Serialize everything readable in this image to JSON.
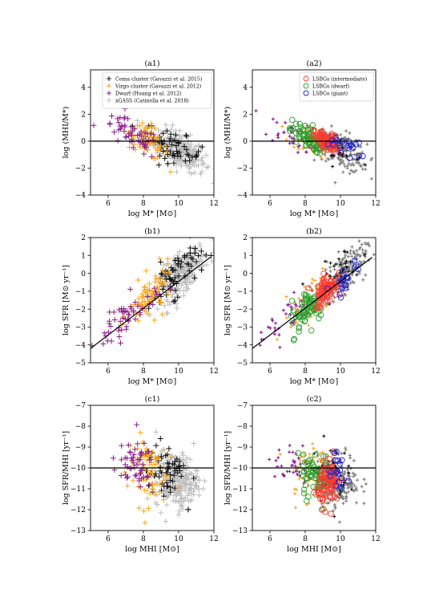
{
  "figure": {
    "panels": [
      "a1",
      "a2",
      "b1",
      "b2",
      "c1",
      "c2"
    ]
  },
  "colors": {
    "coma": "#111111",
    "virgo": "#f5a623",
    "dwarf": "#8b1f8b",
    "xgass": "#bdbdbd",
    "xgass_dense": "#7f7f7f",
    "lsbg_intermediate": "#ff3b30",
    "lsbg_dwarf": "#2ca02c",
    "lsbg_giant": "#1f1fd6",
    "refline": "#000000"
  },
  "chart_data": [
    {
      "id": "a1",
      "type": "scatter",
      "title": "(a1)",
      "xlabel": "log M* [M⊙]",
      "ylabel": "log (MHI/M*)",
      "xlim": [
        5,
        12
      ],
      "ylim": [
        -4,
        5.3
      ],
      "xticks": [
        6,
        8,
        10,
        12
      ],
      "yticks": [
        -4,
        -2,
        0,
        2,
        4
      ],
      "hline": 0,
      "legend": {
        "placement": "top-right",
        "entries": [
          {
            "label": "Coma cluster (Gavazzi et al. 2015)",
            "color": "#111111",
            "marker": "plus"
          },
          {
            "label": "Virgo cluster (Gavazzi et al. 2012)",
            "color": "#f5a623",
            "marker": "plus"
          },
          {
            "label": "Dwarf (Huang et al. 2012)",
            "color": "#8b1f8b",
            "marker": "plus"
          },
          {
            "label": "xGASS (Catinella et al. 2018)",
            "color": "#bdbdbd",
            "marker": "plus"
          }
        ]
      },
      "series": [
        {
          "color": "xgass",
          "center": [
            10.1,
            -0.7
          ],
          "spread": [
            0.7,
            0.65
          ],
          "slope": -0.6,
          "count": 230
        },
        {
          "color": "coma",
          "center": [
            9.7,
            -0.4
          ],
          "spread": [
            0.8,
            0.55
          ],
          "slope": -0.6,
          "count": 60
        },
        {
          "color": "virgo",
          "center": [
            8.3,
            0.0
          ],
          "spread": [
            0.55,
            0.6
          ],
          "slope": -0.6,
          "count": 75
        },
        {
          "color": "dwarf",
          "center": [
            7.3,
            0.4
          ],
          "spread": [
            0.8,
            0.55
          ],
          "slope": -0.6,
          "count": 55
        }
      ]
    },
    {
      "id": "a2",
      "type": "scatter",
      "title": "(a2)",
      "xlabel": "log M* [M⊙]",
      "ylabel": "log (MHI/M*)",
      "xlim": [
        5,
        12
      ],
      "ylim": [
        -4,
        5.3
      ],
      "xticks": [
        6,
        8,
        10,
        12
      ],
      "yticks": [
        -4,
        -2,
        0,
        2,
        4
      ],
      "hline": 0,
      "legend": {
        "placement": "top-right",
        "entries": [
          {
            "label": "LSBGs (intermediate)",
            "color": "#ff3b30",
            "marker": "circle"
          },
          {
            "label": "LSBGs (dwarf)",
            "color": "#2ca02c",
            "marker": "circle"
          },
          {
            "label": "LSBGs (giant)",
            "color": "#1f1fd6",
            "marker": "circle"
          }
        ]
      },
      "series": [
        {
          "color": "xgass_dense",
          "center": [
            10.1,
            -0.7
          ],
          "spread": [
            0.7,
            0.65
          ],
          "slope": -0.6,
          "count": 200,
          "marker": "x"
        },
        {
          "color": "coma",
          "center": [
            9.7,
            -0.4
          ],
          "spread": [
            0.8,
            0.55
          ],
          "slope": -0.6,
          "count": 40,
          "marker": "x"
        },
        {
          "color": "virgo",
          "center": [
            8.3,
            0.0
          ],
          "spread": [
            0.55,
            0.6
          ],
          "slope": -0.6,
          "count": 50,
          "marker": "x"
        },
        {
          "color": "dwarf",
          "center": [
            7.3,
            0.4
          ],
          "spread": [
            0.8,
            0.55
          ],
          "slope": -0.6,
          "count": 40,
          "marker": "x"
        },
        {
          "color": "lsbg_dwarf",
          "center": [
            8.1,
            0.3
          ],
          "spread": [
            0.5,
            0.45
          ],
          "slope": -0.5,
          "count": 75,
          "marker": "circle"
        },
        {
          "color": "lsbg_intermediate",
          "center": [
            9.2,
            -0.05
          ],
          "spread": [
            0.35,
            0.35
          ],
          "slope": -0.5,
          "count": 90,
          "marker": "circle"
        },
        {
          "color": "lsbg_giant",
          "center": [
            10.3,
            -0.35
          ],
          "spread": [
            0.45,
            0.3
          ],
          "slope": -0.5,
          "count": 20,
          "marker": "circle"
        }
      ]
    },
    {
      "id": "b1",
      "type": "scatter",
      "title": "(b1)",
      "xlabel": "log M* [M⊙]",
      "ylabel": "log SFR [M⊙ yr⁻¹]",
      "xlim": [
        5,
        12
      ],
      "ylim": [
        -5,
        2
      ],
      "xticks": [
        6,
        8,
        10,
        12
      ],
      "yticks": [
        -5,
        -4,
        -3,
        -2,
        -1,
        0,
        1,
        2
      ],
      "line": {
        "x": [
          5,
          11.8
        ],
        "y": [
          -4.2,
          0.9
        ]
      },
      "series": [
        {
          "color": "xgass",
          "center": [
            10.2,
            0.0
          ],
          "spread": [
            0.65,
            0.55
          ],
          "slope": 0.75,
          "count": 230
        },
        {
          "color": "coma",
          "center": [
            9.8,
            -0.1
          ],
          "spread": [
            0.75,
            0.6
          ],
          "slope": 0.75,
          "count": 70
        },
        {
          "color": "virgo",
          "center": [
            8.4,
            -1.3
          ],
          "spread": [
            0.6,
            0.6
          ],
          "slope": 0.75,
          "count": 80
        },
        {
          "color": "dwarf",
          "center": [
            7.0,
            -2.5
          ],
          "spread": [
            0.85,
            0.55
          ],
          "slope": 0.75,
          "count": 55
        }
      ]
    },
    {
      "id": "b2",
      "type": "scatter",
      "title": "(b2)",
      "xlabel": "log M* [M⊙]",
      "ylabel": "log SFR [M⊙ yr⁻¹]",
      "xlim": [
        5,
        12
      ],
      "ylim": [
        -5,
        2
      ],
      "xticks": [
        6,
        8,
        10,
        12
      ],
      "yticks": [
        -5,
        -4,
        -3,
        -2,
        -1,
        0,
        1,
        2
      ],
      "line": {
        "x": [
          5,
          11.8
        ],
        "y": [
          -4.2,
          0.9
        ]
      },
      "series": [
        {
          "color": "xgass_dense",
          "center": [
            10.2,
            0.0
          ],
          "spread": [
            0.65,
            0.55
          ],
          "slope": 0.75,
          "count": 200,
          "marker": "x"
        },
        {
          "color": "coma",
          "center": [
            9.8,
            -0.1
          ],
          "spread": [
            0.75,
            0.6
          ],
          "slope": 0.75,
          "count": 45,
          "marker": "x"
        },
        {
          "color": "virgo",
          "center": [
            8.4,
            -1.3
          ],
          "spread": [
            0.6,
            0.6
          ],
          "slope": 0.75,
          "count": 55,
          "marker": "x"
        },
        {
          "color": "dwarf",
          "center": [
            7.0,
            -2.5
          ],
          "spread": [
            0.85,
            0.55
          ],
          "slope": 0.75,
          "count": 40,
          "marker": "x"
        },
        {
          "color": "lsbg_dwarf",
          "center": [
            8.2,
            -1.9
          ],
          "spread": [
            0.5,
            0.55
          ],
          "slope": 0.75,
          "count": 75,
          "marker": "circle"
        },
        {
          "color": "lsbg_intermediate",
          "center": [
            9.2,
            -0.9
          ],
          "spread": [
            0.3,
            0.4
          ],
          "slope": 0.75,
          "count": 90,
          "marker": "circle"
        },
        {
          "color": "lsbg_giant",
          "center": [
            10.3,
            -0.2
          ],
          "spread": [
            0.45,
            0.35
          ],
          "slope": 0.75,
          "count": 20,
          "marker": "circle"
        }
      ]
    },
    {
      "id": "c1",
      "type": "scatter",
      "title": "(c1)",
      "xlabel": "log MHI [M⊙]",
      "ylabel": "log SFR/MHI [yr⁻¹]",
      "xlim": [
        5,
        12
      ],
      "ylim": [
        -13,
        -7
      ],
      "xticks": [
        6,
        8,
        10,
        12
      ],
      "yticks": [
        -13,
        -12,
        -11,
        -10,
        -9,
        -8,
        -7
      ],
      "hline": -10,
      "series": [
        {
          "color": "xgass",
          "center": [
            9.9,
            -10.6
          ],
          "spread": [
            0.6,
            0.65
          ],
          "slope": 0.0,
          "count": 230
        },
        {
          "color": "coma",
          "center": [
            9.3,
            -10.2
          ],
          "spread": [
            0.55,
            0.7
          ],
          "slope": 0.0,
          "count": 60
        },
        {
          "color": "virgo",
          "center": [
            8.2,
            -10.1
          ],
          "spread": [
            0.55,
            0.85
          ],
          "slope": 0.0,
          "count": 75
        },
        {
          "color": "dwarf",
          "center": [
            7.4,
            -9.9
          ],
          "spread": [
            0.6,
            0.55
          ],
          "slope": 0.0,
          "count": 55
        }
      ]
    },
    {
      "id": "c2",
      "type": "scatter",
      "title": "(c2)",
      "xlabel": "log MHI [M⊙]",
      "ylabel": "log SFR/MHI [yr⁻¹]",
      "xlim": [
        5,
        12
      ],
      "ylim": [
        -13,
        -7
      ],
      "xticks": [
        6,
        8,
        10,
        12
      ],
      "yticks": [
        -13,
        -12,
        -11,
        -10,
        -9,
        -8,
        -7
      ],
      "hline": -10,
      "series": [
        {
          "color": "xgass_dense",
          "center": [
            9.9,
            -10.6
          ],
          "spread": [
            0.6,
            0.65
          ],
          "slope": 0.0,
          "count": 200,
          "marker": "x"
        },
        {
          "color": "coma",
          "center": [
            9.3,
            -10.2
          ],
          "spread": [
            0.55,
            0.7
          ],
          "slope": 0.0,
          "count": 45,
          "marker": "x"
        },
        {
          "color": "virgo",
          "center": [
            8.2,
            -10.1
          ],
          "spread": [
            0.55,
            0.85
          ],
          "slope": 0.0,
          "count": 55,
          "marker": "x"
        },
        {
          "color": "dwarf",
          "center": [
            7.4,
            -9.9
          ],
          "spread": [
            0.6,
            0.55
          ],
          "slope": 0.0,
          "count": 40,
          "marker": "x"
        },
        {
          "color": "lsbg_dwarf",
          "center": [
            8.7,
            -10.4
          ],
          "spread": [
            0.55,
            0.5
          ],
          "slope": 0.0,
          "count": 75,
          "marker": "circle"
        },
        {
          "color": "lsbg_intermediate",
          "center": [
            9.35,
            -10.7
          ],
          "spread": [
            0.3,
            0.55
          ],
          "slope": 0.0,
          "count": 90,
          "marker": "circle"
        },
        {
          "color": "lsbg_giant",
          "center": [
            9.9,
            -10.4
          ],
          "spread": [
            0.35,
            0.45
          ],
          "slope": 0.0,
          "count": 20,
          "marker": "circle"
        }
      ]
    }
  ]
}
